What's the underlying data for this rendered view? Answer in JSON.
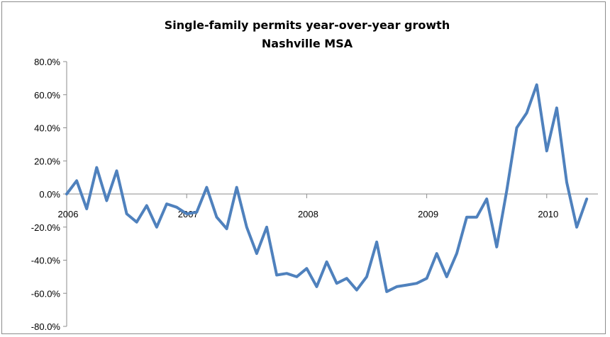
{
  "chart_data": {
    "type": "line",
    "title": "Single-family permits year-over-year growth",
    "subtitle": "Nashville MSA",
    "xlabel": "",
    "ylabel": "",
    "ylim": [
      -80,
      80
    ],
    "y_ticks": [
      "80.0%",
      "60.0%",
      "40.0%",
      "20.0%",
      "0.0%",
      "-20.0%",
      "-40.0%",
      "-60.0%",
      "-80.0%"
    ],
    "x_tick_labels": [
      "2006",
      "2007",
      "2008",
      "2009",
      "2010"
    ],
    "x_tick_month_index": [
      0,
      12,
      24,
      36,
      48
    ],
    "grid": false,
    "legend": "none",
    "series": [
      {
        "color": "#4f81bd",
        "values": [
          0,
          8,
          -9,
          16,
          -4,
          14,
          -12,
          -17,
          -7,
          -20,
          -6,
          -8,
          -12,
          -11,
          4,
          -14,
          -21,
          4,
          -20,
          -36,
          -20,
          -49,
          -48,
          -50,
          -45,
          -56,
          -41,
          -54,
          -51,
          -58,
          -50,
          -29,
          -59,
          -56,
          -55,
          -54,
          -51,
          -36,
          -50,
          -36,
          -14,
          -14,
          -3,
          -32,
          2,
          40,
          49,
          66,
          26,
          52,
          7,
          -20,
          -3
        ]
      }
    ]
  }
}
